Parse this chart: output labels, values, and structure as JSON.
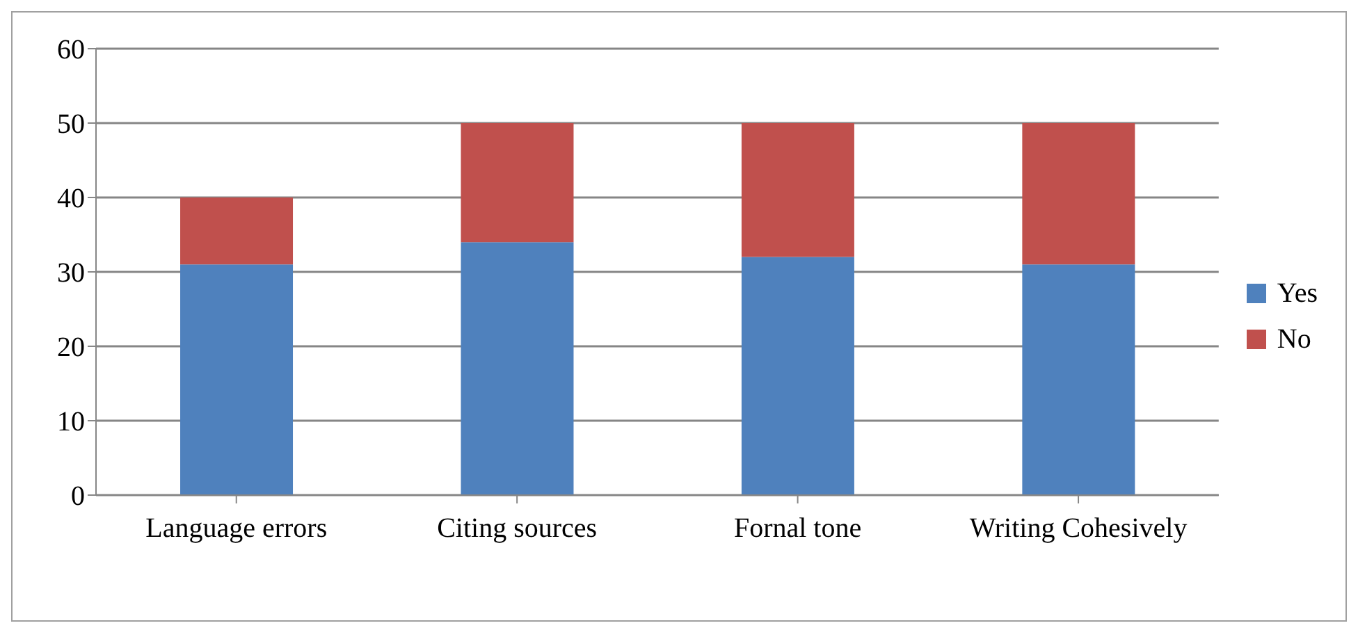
{
  "chart_data": {
    "type": "bar",
    "stacked": true,
    "categories": [
      "Language errors",
      "Citing sources",
      "Fornal tone",
      "Writing Cohesively"
    ],
    "series": [
      {
        "name": "Yes",
        "color": "#4f81bd",
        "values": [
          31,
          34,
          32,
          31
        ]
      },
      {
        "name": "No",
        "color": "#c0504d",
        "values": [
          9,
          16,
          18,
          19
        ]
      }
    ],
    "ylim": [
      0,
      60
    ],
    "yticks": [
      0,
      10,
      20,
      30,
      40,
      50,
      60
    ],
    "grid": "y",
    "legend": "right"
  }
}
